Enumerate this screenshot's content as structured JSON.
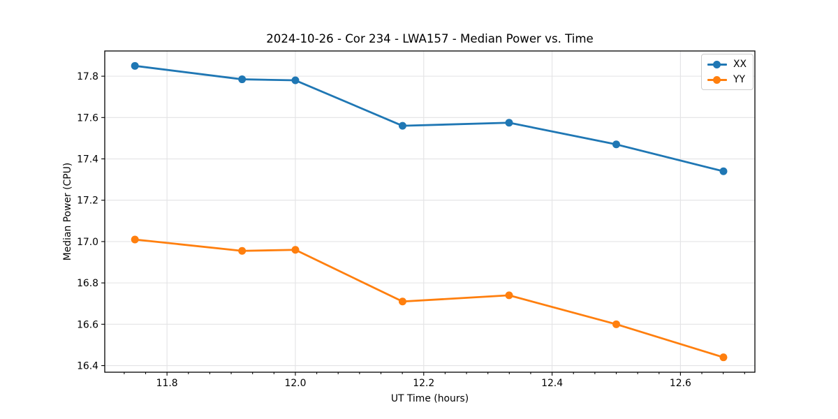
{
  "figure": {
    "background": "#ffffff",
    "text_color": "#000000"
  },
  "chart_data": {
    "type": "line",
    "title": "2024-10-26 - Cor 234 - LWA157 - Median Power vs. Time",
    "xlabel": "UT Time (hours)",
    "ylabel": "Median Power (CPU)",
    "x": [
      11.75,
      11.917,
      12.0,
      12.167,
      12.333,
      12.5,
      12.667
    ],
    "series": [
      {
        "name": "XX",
        "color": "#1f77b4",
        "values": [
          17.85,
          17.785,
          17.78,
          17.56,
          17.575,
          17.47,
          17.34
        ]
      },
      {
        "name": "YY",
        "color": "#ff7f0e",
        "values": [
          17.01,
          16.955,
          16.96,
          16.71,
          16.74,
          16.6,
          16.44
        ]
      }
    ],
    "xlim": [
      11.703,
      12.716
    ],
    "ylim": [
      16.368,
      17.922
    ],
    "xticks": [
      11.8,
      12.0,
      12.2,
      12.4,
      12.6
    ],
    "yticks": [
      16.4,
      16.6,
      16.8,
      17.0,
      17.2,
      17.4,
      17.6,
      17.8
    ],
    "x_minor_divisions": 6,
    "grid": true,
    "grid_color": "#e3e3e5",
    "axis_color": "#000000",
    "marker": "circle",
    "legend_position": "upper right"
  }
}
